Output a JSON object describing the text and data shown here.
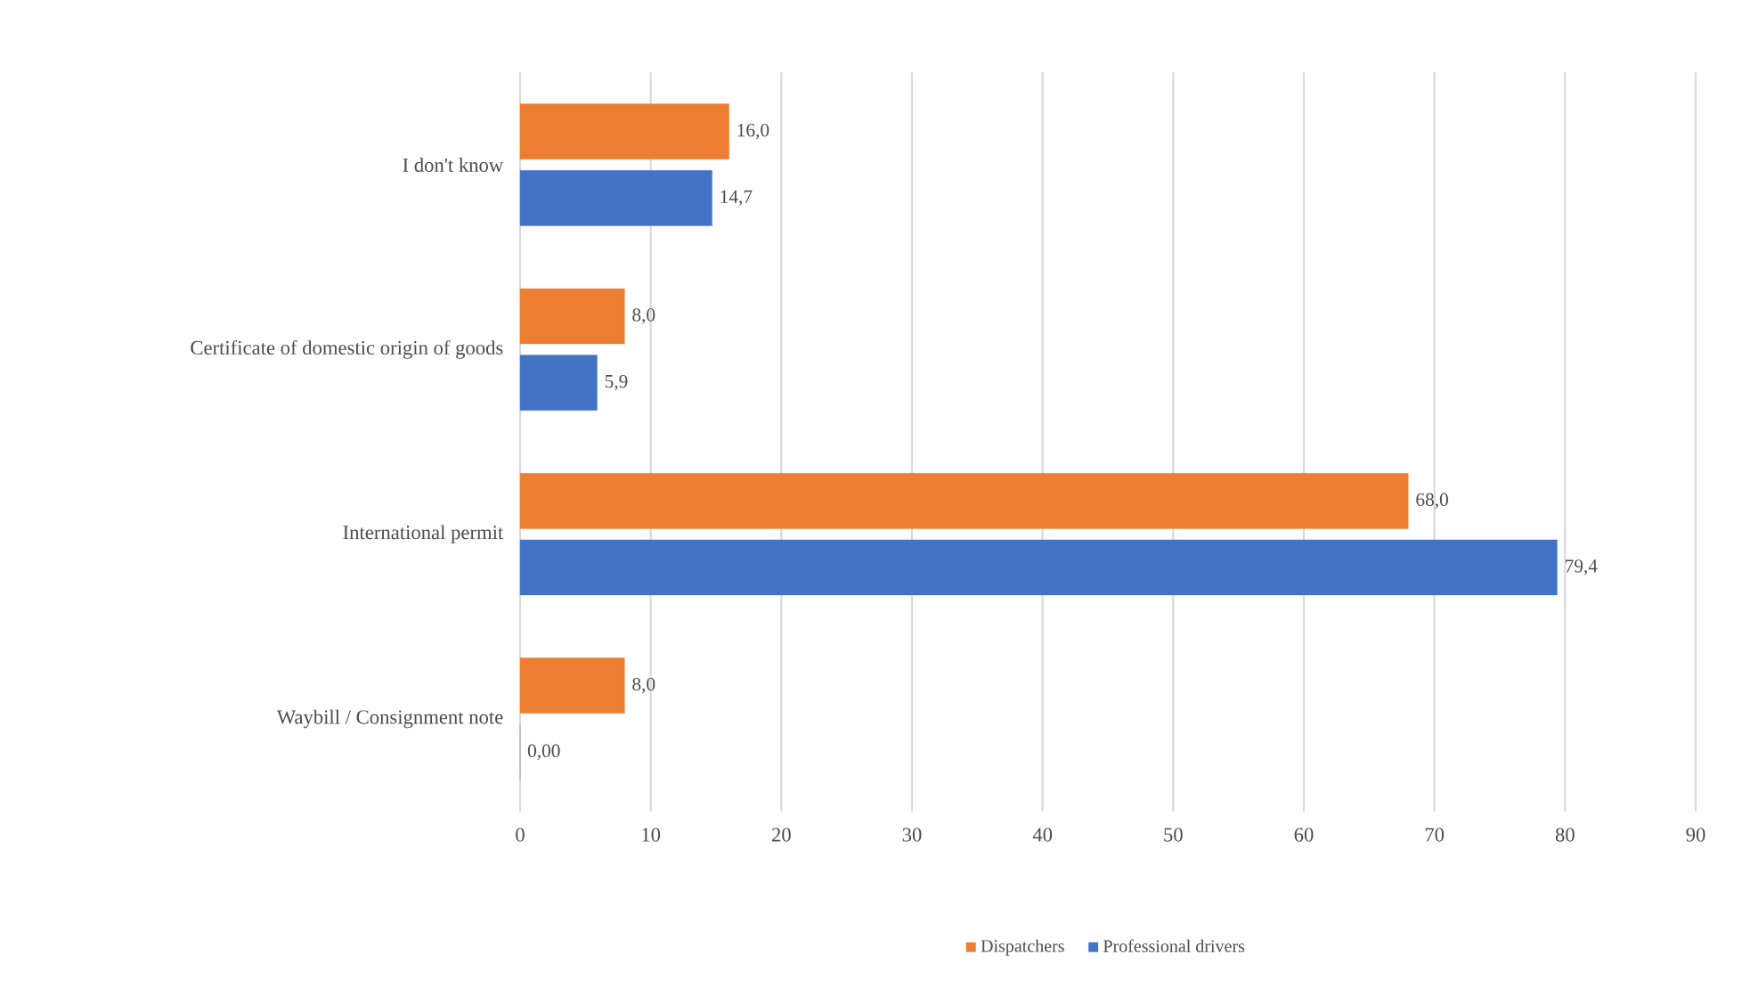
{
  "chart_data": {
    "type": "bar",
    "orientation": "horizontal",
    "categories": [
      "I don't know",
      "Certificate of domestic origin of goods",
      "International permit",
      "Waybill / Consignment note"
    ],
    "series": [
      {
        "name": "Dispatchers",
        "color": "#ed7d31",
        "values": [
          16.0,
          8.0,
          68.0,
          8.0
        ],
        "value_labels": [
          "16,0",
          "8,0",
          "68,0",
          "8,0"
        ]
      },
      {
        "name": "Professional drivers",
        "color": "#4472c4",
        "values": [
          14.7,
          5.9,
          79.4,
          0
        ],
        "value_labels": [
          "14,7",
          "5,9",
          "79,4",
          "0,00"
        ]
      }
    ],
    "xlim": [
      0,
      90
    ],
    "xticks": [
      0,
      10,
      20,
      30,
      40,
      50,
      60,
      70,
      80,
      90
    ],
    "grid": "x",
    "legend": "bottom"
  }
}
